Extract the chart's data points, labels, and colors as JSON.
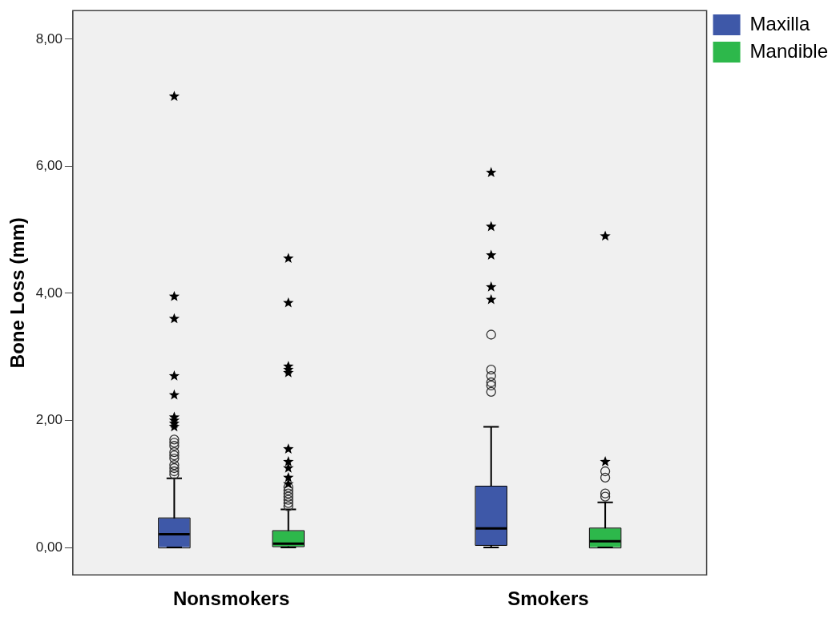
{
  "chart_data": {
    "type": "box",
    "ylabel": "Bone Loss (mm)",
    "categories": [
      "Nonsmokers",
      "Smokers"
    ],
    "ylim": [
      -0.43,
      8.45
    ],
    "yticks": [
      {
        "value": 0,
        "label": "0,00"
      },
      {
        "value": 2,
        "label": "2,00"
      },
      {
        "value": 4,
        "label": "4,00"
      },
      {
        "value": 6,
        "label": "6,00"
      },
      {
        "value": 8,
        "label": "8,00"
      }
    ],
    "grid": false,
    "legend": "top right",
    "series": [
      {
        "name": "Maxilla",
        "color": "#3e58a8",
        "boxes": [
          {
            "low": 0,
            "q1": 0,
            "median": 0.21,
            "q3": 0.46,
            "high": 1.09,
            "outliers": [
              1.15,
              1.2,
              1.25,
              1.3,
              1.4,
              1.45,
              1.5,
              1.6,
              1.65,
              1.7,
              1.9,
              1.95,
              2.0,
              2.05,
              2.4,
              2.7,
              3.6,
              3.95,
              7.1
            ]
          },
          {
            "low": 0,
            "q1": 0.04,
            "median": 0.3,
            "q3": 0.96,
            "high": 1.9,
            "outliers": [
              2.45,
              2.55,
              2.6,
              2.7,
              2.8,
              3.35,
              3.9,
              4.1,
              4.6,
              5.05,
              5.9
            ]
          }
        ]
      },
      {
        "name": "Mandible",
        "color": "#2db84b",
        "boxes": [
          {
            "low": 0,
            "q1": 0.02,
            "median": 0.06,
            "q3": 0.26,
            "high": 0.6,
            "outliers": [
              0.65,
              0.7,
              0.75,
              0.8,
              0.85,
              0.9,
              0.95,
              1.0,
              1.1,
              1.25,
              1.35,
              1.55,
              2.75,
              2.8,
              2.85,
              3.85,
              4.55
            ]
          },
          {
            "low": 0,
            "q1": 0,
            "median": 0.1,
            "q3": 0.3,
            "high": 0.71,
            "outliers": [
              0.8,
              0.85,
              1.1,
              1.2,
              1.35,
              4.9
            ]
          }
        ]
      }
    ]
  }
}
